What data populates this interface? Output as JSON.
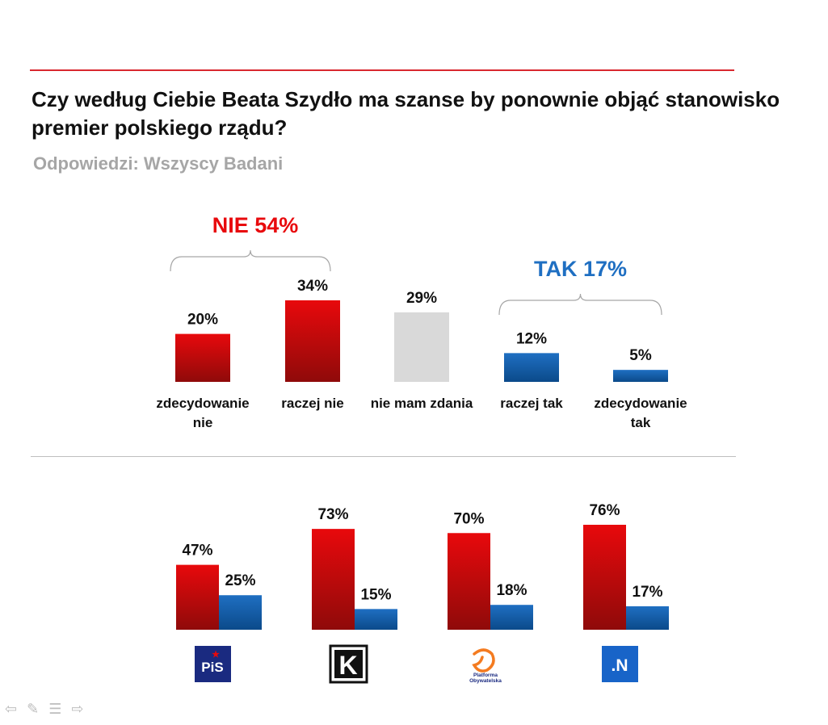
{
  "title": "Czy według Ciebie Beata Szydło ma szanse by ponownie objąć stanowisko premier polskiego rządu?",
  "subtitle": "Odpowiedzi: Wszyscy Badani",
  "colors": {
    "red": "#e8090c",
    "red_dark": "#8f0a0a",
    "blue": "#1f6fc2",
    "blue_dark": "#0b4a8a",
    "gray": "#d9d9d9",
    "nie_text": "#e8090c",
    "tak_text": "#1f6fc2"
  },
  "chart_data": [
    {
      "type": "bar",
      "title": "Odpowiedzi: Wszyscy Badani",
      "categories": [
        "zdecydowanie nie",
        "raczej nie",
        "nie mam zdania",
        "raczej tak",
        "zdecydowanie tak"
      ],
      "category_lines": [
        [
          "zdecydowanie",
          "nie"
        ],
        [
          "raczej nie"
        ],
        [
          "nie mam zdania"
        ],
        [
          "raczej tak"
        ],
        [
          "zdecydowanie",
          "tak"
        ]
      ],
      "values": [
        20,
        34,
        29,
        12,
        5
      ],
      "value_labels": [
        "20%",
        "34%",
        "29%",
        "12%",
        "5%"
      ],
      "groups": [
        "red",
        "red",
        "gray",
        "blue",
        "blue"
      ],
      "ylim": [
        0,
        34
      ],
      "group_labels": [
        {
          "label": "NIE 54%",
          "from": 0,
          "to": 1,
          "color": "red"
        },
        {
          "label": "TAK 17%",
          "from": 3,
          "to": 4,
          "color": "blue"
        }
      ]
    },
    {
      "type": "bar",
      "categories": [
        "PiS",
        "Kukiz'15",
        "Platforma Obywatelska",
        ".N"
      ],
      "series": [
        {
          "name": "NIE",
          "values": [
            47,
            73,
            70,
            76
          ],
          "labels": [
            "47%",
            "73%",
            "70%",
            "76%"
          ]
        },
        {
          "name": "TAK",
          "values": [
            25,
            15,
            18,
            17
          ],
          "labels": [
            "25%",
            "15%",
            "18%",
            "17%"
          ]
        }
      ],
      "ylim": [
        0,
        76
      ],
      "logos": [
        {
          "name": "pis-logo",
          "text": "PiS"
        },
        {
          "name": "kukiz-logo",
          "text": "K"
        },
        {
          "name": "po-logo",
          "text": "Platforma Obywatelska"
        },
        {
          "name": "nowoczesna-logo",
          "text": ".N"
        }
      ]
    }
  ],
  "nav": [
    "⇦",
    "✎",
    "☰",
    "⇨"
  ]
}
